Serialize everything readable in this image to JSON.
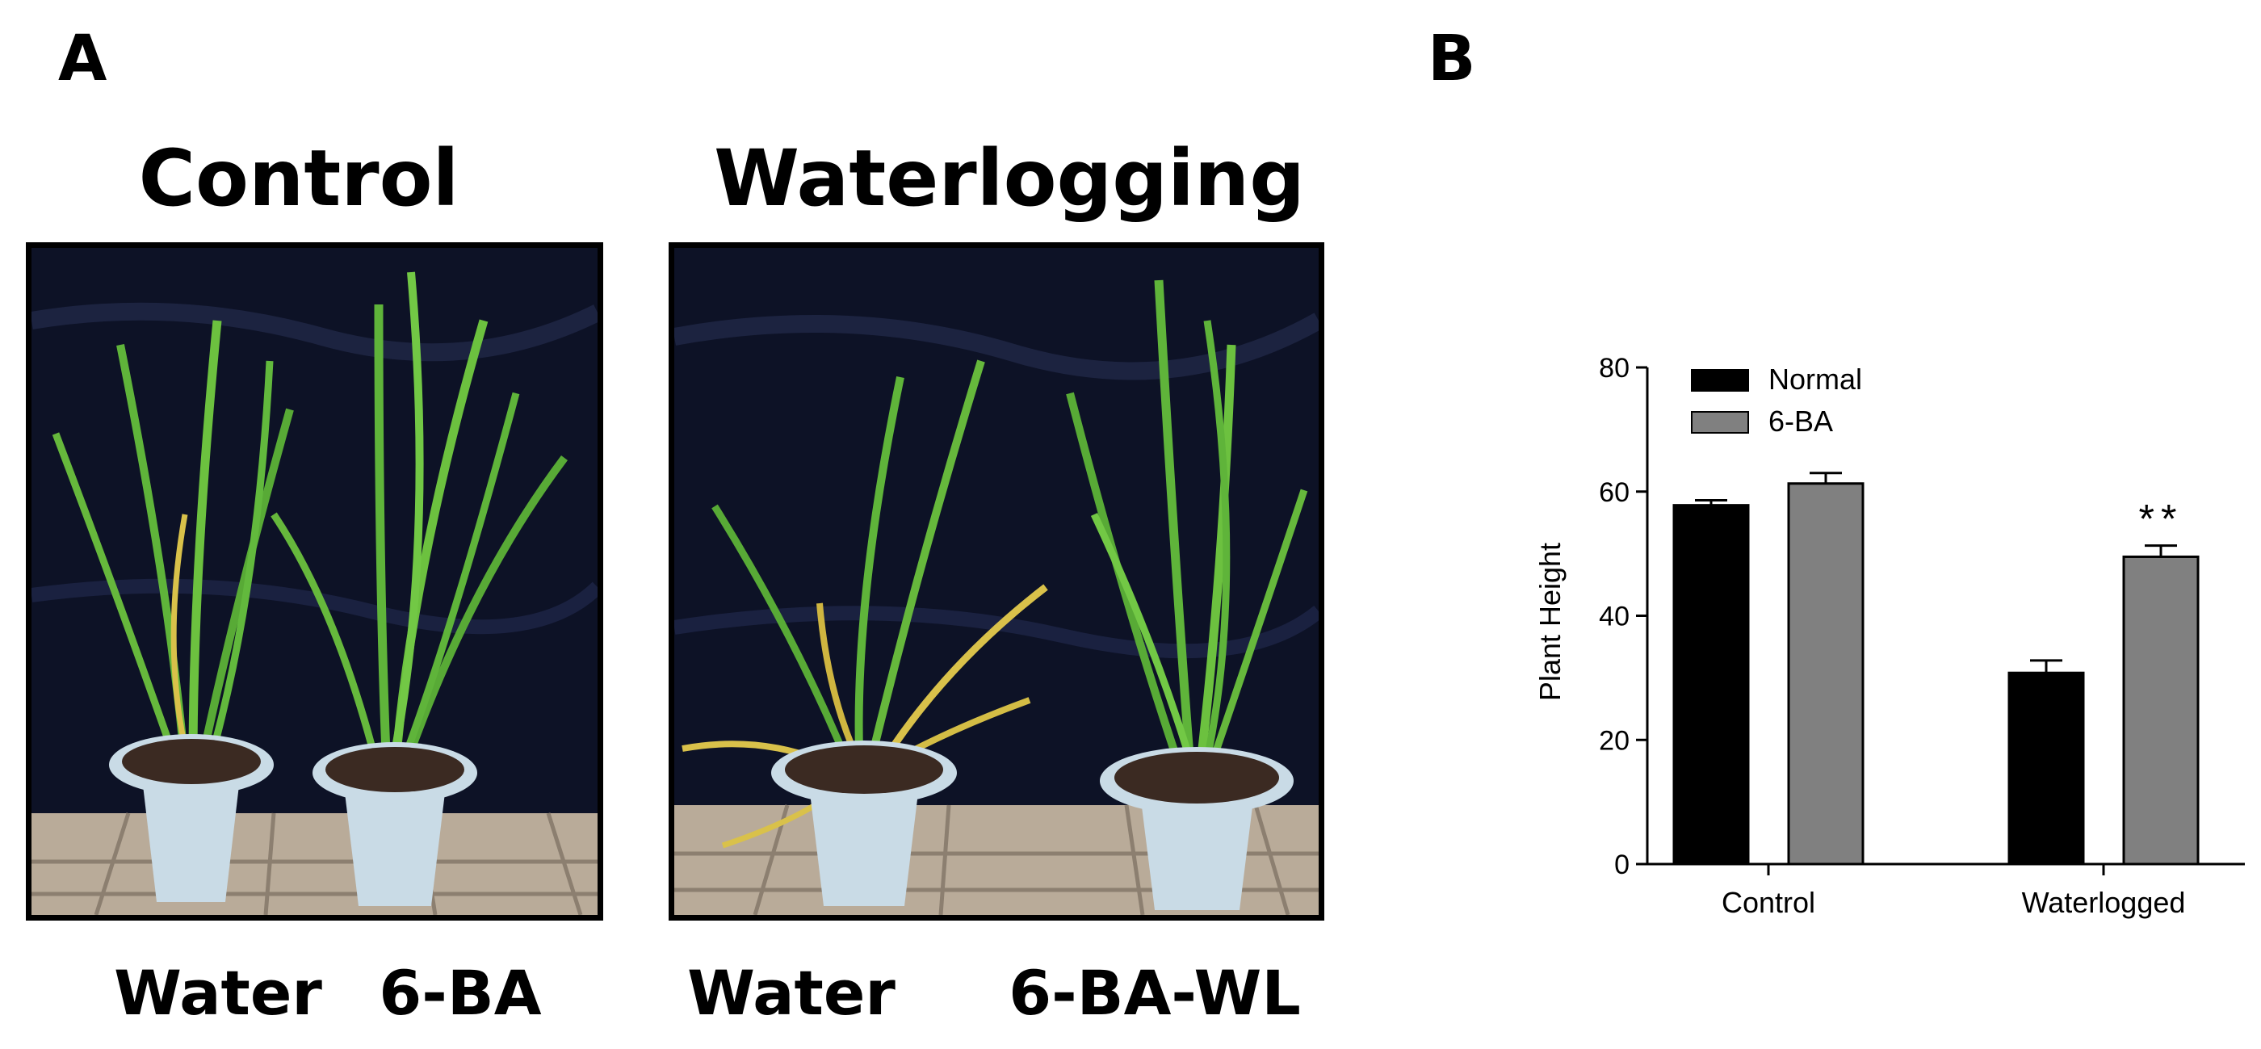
{
  "panels": {
    "a_label": "A",
    "b_label": "B"
  },
  "photo_panel": {
    "left_title": "Control",
    "right_title": "Waterlogging",
    "left_pots": [
      "Water",
      "6-BA"
    ],
    "right_pots": [
      "Water",
      "6-BA-WL"
    ]
  },
  "colors": {
    "normal_bar": "#000000",
    "ba_bar": "#808080",
    "backdrop": "#0d1226",
    "leaf_green": "#5fb43a",
    "leaf_yellow": "#d9c14a",
    "pot": "#c9dbe6",
    "soil": "#3b2a22",
    "floor": "#b9ab99"
  },
  "chart_data": {
    "type": "bar",
    "categories": [
      "Control",
      "Waterlogged"
    ],
    "series": [
      {
        "name": "Normal",
        "values": [
          57.8,
          30.8
        ],
        "errors": [
          0.8,
          2.0
        ]
      },
      {
        "name": "6-BA",
        "values": [
          61.3,
          49.5
        ],
        "errors": [
          1.7,
          1.8
        ]
      }
    ],
    "annotations": [
      {
        "category": "Waterlogged",
        "series": "6-BA",
        "text": "**"
      }
    ],
    "ylabel": "Plant Height",
    "xlabel": "",
    "ylim": [
      0,
      80
    ],
    "yticks": [
      0,
      20,
      40,
      60,
      80
    ],
    "grid": false,
    "legend": "top-left"
  }
}
